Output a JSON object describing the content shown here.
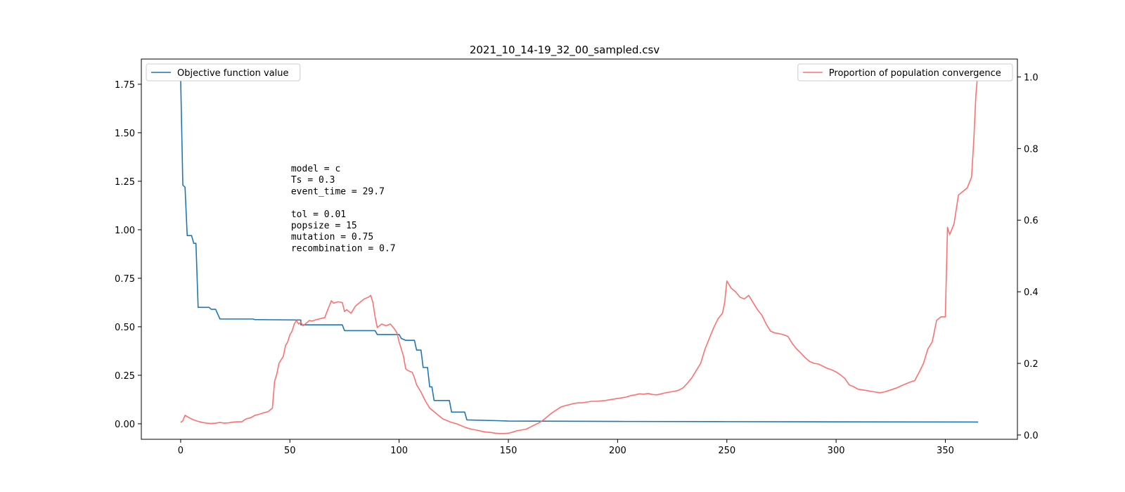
{
  "chart_data": {
    "type": "line",
    "title": "2021_10_14-19_32_00_sampled.csv",
    "xlabel": "",
    "ylabel": "",
    "y2label": "",
    "xlim": [
      -18,
      383
    ],
    "ylim": [
      -0.08,
      1.88
    ],
    "y2lim": [
      -0.012,
      1.05
    ],
    "x_ticks": [
      0,
      50,
      100,
      150,
      200,
      250,
      300,
      350
    ],
    "y_ticks": [
      0.0,
      0.25,
      0.5,
      0.75,
      1.0,
      1.25,
      1.5,
      1.75
    ],
    "y_tick_labels": [
      "0.00",
      "0.25",
      "0.50",
      "0.75",
      "1.00",
      "1.25",
      "1.50",
      "1.75"
    ],
    "y2_ticks": [
      0.0,
      0.2,
      0.4,
      0.6,
      0.8,
      1.0
    ],
    "y2_tick_labels": [
      "0.0",
      "0.2",
      "0.4",
      "0.6",
      "0.8",
      "1.0"
    ],
    "grid": false,
    "annotation": [
      "model = c",
      "Ts = 0.3",
      "event_time = 29.7",
      "",
      "tol = 0.01",
      "popsize = 15",
      "mutation = 0.75",
      "recombination = 0.7"
    ],
    "series": [
      {
        "name": "Objective function value",
        "axis": "left",
        "color": "#1f77b4",
        "legend_loc": "upper left",
        "points": [
          [
            0,
            1.78
          ],
          [
            1,
            1.23
          ],
          [
            2,
            1.22
          ],
          [
            3,
            0.97
          ],
          [
            5,
            0.97
          ],
          [
            6,
            0.93
          ],
          [
            7,
            0.93
          ],
          [
            8,
            0.6
          ],
          [
            12,
            0.6
          ],
          [
            13,
            0.6
          ],
          [
            14,
            0.59
          ],
          [
            16,
            0.59
          ],
          [
            18,
            0.54
          ],
          [
            33,
            0.54
          ],
          [
            34,
            0.537
          ],
          [
            54,
            0.535
          ],
          [
            55,
            0.535
          ],
          [
            55,
            0.51
          ],
          [
            74,
            0.51
          ],
          [
            75,
            0.48
          ],
          [
            89,
            0.48
          ],
          [
            90,
            0.46
          ],
          [
            100,
            0.46
          ],
          [
            101,
            0.44
          ],
          [
            103,
            0.43
          ],
          [
            107,
            0.43
          ],
          [
            108,
            0.38
          ],
          [
            110,
            0.38
          ],
          [
            111,
            0.29
          ],
          [
            113,
            0.29
          ],
          [
            114,
            0.19
          ],
          [
            115,
            0.19
          ],
          [
            116,
            0.12
          ],
          [
            123,
            0.12
          ],
          [
            124,
            0.06
          ],
          [
            130,
            0.06
          ],
          [
            131,
            0.02
          ],
          [
            145,
            0.016
          ],
          [
            150,
            0.014
          ],
          [
            200,
            0.012
          ],
          [
            250,
            0.011
          ],
          [
            300,
            0.01
          ],
          [
            365,
            0.009
          ]
        ]
      },
      {
        "name": "Proportion of population convergence",
        "axis": "right",
        "color": "#ff7070",
        "legend_loc": "upper right",
        "points": [
          [
            0,
            0.035
          ],
          [
            1,
            0.04
          ],
          [
            2,
            0.055
          ],
          [
            4,
            0.048
          ],
          [
            6,
            0.042
          ],
          [
            8,
            0.038
          ],
          [
            10,
            0.035
          ],
          [
            12,
            0.033
          ],
          [
            14,
            0.032
          ],
          [
            16,
            0.033
          ],
          [
            18,
            0.035
          ],
          [
            20,
            0.033
          ],
          [
            22,
            0.034
          ],
          [
            24,
            0.036
          ],
          [
            26,
            0.037
          ],
          [
            28,
            0.037
          ],
          [
            30,
            0.045
          ],
          [
            32,
            0.048
          ],
          [
            34,
            0.055
          ],
          [
            36,
            0.058
          ],
          [
            38,
            0.062
          ],
          [
            40,
            0.065
          ],
          [
            41,
            0.07
          ],
          [
            42,
            0.075
          ],
          [
            43,
            0.15
          ],
          [
            44,
            0.17
          ],
          [
            45,
            0.2
          ],
          [
            46,
            0.21
          ],
          [
            47,
            0.22
          ],
          [
            48,
            0.25
          ],
          [
            49,
            0.26
          ],
          [
            50,
            0.28
          ],
          [
            51,
            0.29
          ],
          [
            52,
            0.31
          ],
          [
            53,
            0.32
          ],
          [
            54,
            0.31
          ],
          [
            55,
            0.315
          ],
          [
            56,
            0.305
          ],
          [
            57,
            0.31
          ],
          [
            58,
            0.315
          ],
          [
            59,
            0.32
          ],
          [
            60,
            0.318
          ],
          [
            62,
            0.322
          ],
          [
            64,
            0.325
          ],
          [
            66,
            0.328
          ],
          [
            67,
            0.345
          ],
          [
            68,
            0.36
          ],
          [
            69,
            0.375
          ],
          [
            70,
            0.368
          ],
          [
            72,
            0.372
          ],
          [
            74,
            0.37
          ],
          [
            75,
            0.345
          ],
          [
            76,
            0.35
          ],
          [
            78,
            0.34
          ],
          [
            80,
            0.36
          ],
          [
            82,
            0.37
          ],
          [
            84,
            0.38
          ],
          [
            86,
            0.385
          ],
          [
            87,
            0.39
          ],
          [
            88,
            0.37
          ],
          [
            89,
            0.33
          ],
          [
            90,
            0.3
          ],
          [
            92,
            0.31
          ],
          [
            94,
            0.305
          ],
          [
            96,
            0.31
          ],
          [
            98,
            0.295
          ],
          [
            99,
            0.285
          ],
          [
            100,
            0.26
          ],
          [
            101,
            0.24
          ],
          [
            102,
            0.22
          ],
          [
            103,
            0.185
          ],
          [
            104,
            0.18
          ],
          [
            106,
            0.175
          ],
          [
            107,
            0.16
          ],
          [
            108,
            0.14
          ],
          [
            110,
            0.12
          ],
          [
            112,
            0.095
          ],
          [
            114,
            0.075
          ],
          [
            115,
            0.07
          ],
          [
            116,
            0.065
          ],
          [
            118,
            0.055
          ],
          [
            120,
            0.045
          ],
          [
            122,
            0.04
          ],
          [
            124,
            0.035
          ],
          [
            126,
            0.032
          ],
          [
            128,
            0.027
          ],
          [
            130,
            0.022
          ],
          [
            132,
            0.018
          ],
          [
            134,
            0.015
          ],
          [
            136,
            0.013
          ],
          [
            138,
            0.01
          ],
          [
            140,
            0.008
          ],
          [
            142,
            0.007
          ],
          [
            144,
            0.005
          ],
          [
            146,
            0.004
          ],
          [
            148,
            0.004
          ],
          [
            150,
            0.005
          ],
          [
            152,
            0.008
          ],
          [
            154,
            0.012
          ],
          [
            156,
            0.014
          ],
          [
            158,
            0.016
          ],
          [
            160,
            0.022
          ],
          [
            162,
            0.028
          ],
          [
            164,
            0.034
          ],
          [
            166,
            0.042
          ],
          [
            168,
            0.052
          ],
          [
            170,
            0.062
          ],
          [
            172,
            0.07
          ],
          [
            174,
            0.078
          ],
          [
            176,
            0.082
          ],
          [
            178,
            0.085
          ],
          [
            180,
            0.088
          ],
          [
            182,
            0.09
          ],
          [
            184,
            0.09
          ],
          [
            186,
            0.092
          ],
          [
            188,
            0.094
          ],
          [
            190,
            0.094
          ],
          [
            192,
            0.095
          ],
          [
            194,
            0.096
          ],
          [
            196,
            0.098
          ],
          [
            198,
            0.1
          ],
          [
            200,
            0.102
          ],
          [
            202,
            0.104
          ],
          [
            204,
            0.106
          ],
          [
            206,
            0.11
          ],
          [
            208,
            0.112
          ],
          [
            210,
            0.115
          ],
          [
            212,
            0.114
          ],
          [
            214,
            0.116
          ],
          [
            216,
            0.113
          ],
          [
            218,
            0.112
          ],
          [
            220,
            0.115
          ],
          [
            222,
            0.118
          ],
          [
            224,
            0.12
          ],
          [
            226,
            0.122
          ],
          [
            228,
            0.125
          ],
          [
            230,
            0.132
          ],
          [
            232,
            0.145
          ],
          [
            234,
            0.16
          ],
          [
            236,
            0.18
          ],
          [
            238,
            0.2
          ],
          [
            240,
            0.24
          ],
          [
            242,
            0.27
          ],
          [
            244,
            0.3
          ],
          [
            246,
            0.325
          ],
          [
            248,
            0.34
          ],
          [
            249,
            0.37
          ],
          [
            250,
            0.43
          ],
          [
            252,
            0.41
          ],
          [
            254,
            0.4
          ],
          [
            256,
            0.385
          ],
          [
            258,
            0.38
          ],
          [
            260,
            0.39
          ],
          [
            262,
            0.37
          ],
          [
            264,
            0.35
          ],
          [
            266,
            0.335
          ],
          [
            268,
            0.31
          ],
          [
            270,
            0.29
          ],
          [
            272,
            0.285
          ],
          [
            274,
            0.283
          ],
          [
            276,
            0.28
          ],
          [
            278,
            0.275
          ],
          [
            280,
            0.255
          ],
          [
            282,
            0.24
          ],
          [
            284,
            0.228
          ],
          [
            286,
            0.215
          ],
          [
            288,
            0.205
          ],
          [
            290,
            0.2
          ],
          [
            292,
            0.198
          ],
          [
            294,
            0.192
          ],
          [
            296,
            0.186
          ],
          [
            298,
            0.182
          ],
          [
            300,
            0.176
          ],
          [
            302,
            0.168
          ],
          [
            304,
            0.158
          ],
          [
            306,
            0.14
          ],
          [
            308,
            0.135
          ],
          [
            310,
            0.128
          ],
          [
            312,
            0.126
          ],
          [
            314,
            0.124
          ],
          [
            316,
            0.122
          ],
          [
            318,
            0.12
          ],
          [
            320,
            0.118
          ],
          [
            322,
            0.12
          ],
          [
            324,
            0.124
          ],
          [
            326,
            0.128
          ],
          [
            328,
            0.132
          ],
          [
            330,
            0.138
          ],
          [
            332,
            0.143
          ],
          [
            334,
            0.148
          ],
          [
            336,
            0.152
          ],
          [
            338,
            0.175
          ],
          [
            340,
            0.2
          ],
          [
            342,
            0.24
          ],
          [
            344,
            0.26
          ],
          [
            346,
            0.32
          ],
          [
            348,
            0.33
          ],
          [
            350,
            0.33
          ],
          [
            351,
            0.58
          ],
          [
            352,
            0.56
          ],
          [
            354,
            0.59
          ],
          [
            356,
            0.67
          ],
          [
            358,
            0.68
          ],
          [
            360,
            0.69
          ],
          [
            362,
            0.72
          ],
          [
            363,
            0.82
          ],
          [
            364,
            0.95
          ],
          [
            365,
            1.02
          ]
        ]
      }
    ]
  }
}
